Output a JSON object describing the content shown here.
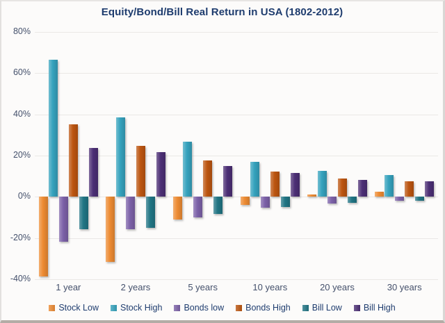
{
  "title": "Equity/Bond/Bill Real Return in USA (1802-2012)",
  "chart_data": {
    "type": "bar",
    "title": "Equity/Bond/Bill Real Return in USA (1802-2012)",
    "categories": [
      "1 year",
      "2 years",
      "5 years",
      "10 years",
      "20 years",
      "30 years"
    ],
    "series": [
      {
        "name": "Stock Low",
        "color": "#ED8B33",
        "values": [
          -38.6,
          -31.6,
          -11.0,
          -4.1,
          1.0,
          2.6
        ]
      },
      {
        "name": "Stock High",
        "color": "#35A2BD",
        "values": [
          66.6,
          38.6,
          26.7,
          16.9,
          12.6,
          10.6
        ]
      },
      {
        "name": "Bonds low",
        "color": "#7C61A8",
        "values": [
          -21.9,
          -15.9,
          -10.1,
          -5.4,
          -3.1,
          -2.0
        ]
      },
      {
        "name": "Bonds High",
        "color": "#BC5510",
        "values": [
          35.1,
          24.7,
          17.7,
          12.4,
          8.8,
          7.4
        ]
      },
      {
        "name": "Bill Low",
        "color": "#217584",
        "values": [
          -15.6,
          -15.1,
          -8.2,
          -5.1,
          -3.0,
          -1.8
        ]
      },
      {
        "name": "Bill High",
        "color": "#4C2F75",
        "values": [
          23.7,
          21.6,
          14.9,
          11.6,
          8.3,
          7.6
        ]
      }
    ],
    "ylabel": "",
    "xlabel": "",
    "ylim": [
      -40,
      80
    ],
    "ytick_step": 20,
    "ytick_suffix": "%",
    "ytick_labels": [
      "80%",
      "60%",
      "40%",
      "20%",
      "0%",
      "-20%",
      "-40%"
    ],
    "grid": true,
    "legend_position": "bottom"
  },
  "colors": {
    "title_text": "#1E3C6E",
    "axis_text": "#44506B",
    "legend_text": "#1E3C6E",
    "gridline": "#EAE8E6",
    "background": "#FCFBFA"
  }
}
